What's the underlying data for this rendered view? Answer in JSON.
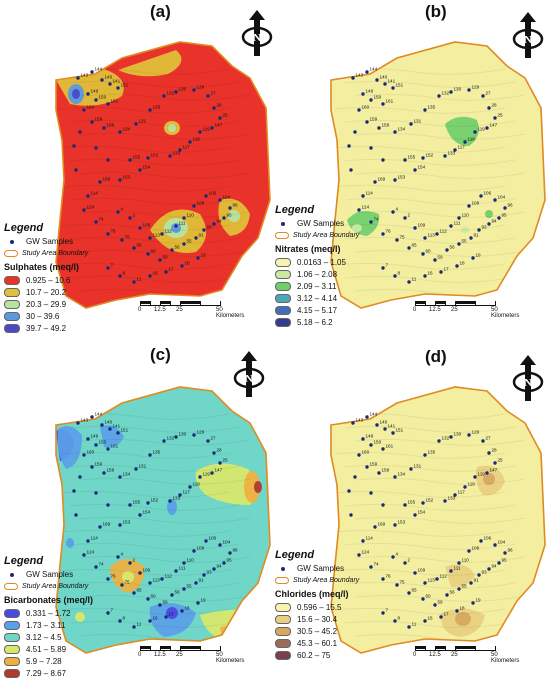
{
  "panels": [
    {
      "label": "(a)",
      "base_color": "#e8322a",
      "variable_title": "Sulphates (meq/l)",
      "classes": [
        {
          "range": "0.925 – 10.6",
          "color": "#e8322a"
        },
        {
          "range": "10.7 – 20.2",
          "color": "#e0c23a"
        },
        {
          "range": "20.3 – 29.9",
          "color": "#b7e3a0"
        },
        {
          "range": "30 – 39.6",
          "color": "#5a98e0"
        },
        {
          "range": "39.7 – 49.2",
          "color": "#4a4ac8"
        }
      ]
    },
    {
      "label": "(b)",
      "base_color": "#f3eea0",
      "variable_title": "Nitrates (meq/l)",
      "classes": [
        {
          "range": "0.0163 – 1.05",
          "color": "#f7f3b0"
        },
        {
          "range": "1.06 – 2.08",
          "color": "#c7eaa0"
        },
        {
          "range": "2.09 – 3.11",
          "color": "#6fcf6a"
        },
        {
          "range": "3.12 – 4.14",
          "color": "#4aa8b8"
        },
        {
          "range": "4.15 – 5.17",
          "color": "#3f6fb8"
        },
        {
          "range": "5.18 – 6.2",
          "color": "#353c8f"
        }
      ]
    },
    {
      "label": "(c)",
      "base_color": "#6fd6c8",
      "variable_title": "Bicarbonates (meq/l)",
      "classes": [
        {
          "range": "0.331 – 1.72",
          "color": "#4a4ae0"
        },
        {
          "range": "1.73 – 3.11",
          "color": "#5aa0e8"
        },
        {
          "range": "3.12 – 4.5",
          "color": "#6fd6c8"
        },
        {
          "range": "4.51 – 5.89",
          "color": "#d9e86a"
        },
        {
          "range": "5.9 – 7.28",
          "color": "#f0b040"
        },
        {
          "range": "7.29 – 8.67",
          "color": "#b03a2e"
        }
      ]
    },
    {
      "label": "(d)",
      "base_color": "#f3eea0",
      "variable_title": "Chlorides (meq/l)",
      "classes": [
        {
          "range": "0.596 – 15.5",
          "color": "#f7f3b0"
        },
        {
          "range": "15.6 – 30.4",
          "color": "#e8d080"
        },
        {
          "range": "30.5 – 45.2",
          "color": "#d8a860"
        },
        {
          "range": "45.3 – 60.1",
          "color": "#9c6a58"
        },
        {
          "range": "60.2 – 75",
          "color": "#7a3f50"
        }
      ]
    }
  ],
  "legend": {
    "title": "Legend",
    "samples_label": "GW Samples",
    "boundary_label": "Study Area Boundary"
  },
  "scale_bar": {
    "ticks": [
      "0",
      "12.5",
      "25",
      "50 Kilometers"
    ]
  },
  "north_arrow": {
    "letter": "N"
  },
  "sample_ids": [
    "143",
    "144",
    "140",
    "141",
    "151",
    "149",
    "150",
    "161",
    "160",
    "159",
    "158",
    "134",
    "131",
    "135",
    "132",
    "130",
    "129",
    "27",
    "28",
    "25",
    "147",
    "119",
    "118",
    "117",
    "133",
    "152",
    "155",
    "154",
    "153",
    "169",
    "114",
    "124",
    "74",
    "76",
    "75",
    "65",
    "60",
    "59",
    "56",
    "55",
    "91",
    "93",
    "94",
    "95",
    "96",
    "104",
    "106",
    "108",
    "110",
    "111",
    "112",
    "113",
    "109",
    "2",
    "4",
    "7",
    "8",
    "11",
    "16",
    "17",
    "18",
    "19"
  ],
  "colors": {
    "boundary": "#e08a20",
    "sample_dot": "#1a2a7a"
  }
}
